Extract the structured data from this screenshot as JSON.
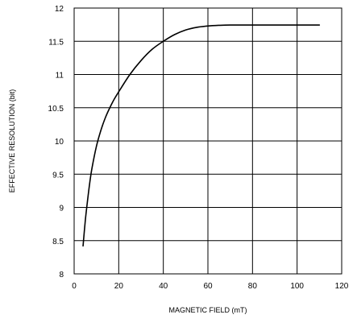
{
  "chart_data": {
    "type": "line",
    "title": "",
    "xlabel": "MAGNETIC FIELD (mT)",
    "ylabel": "EFFECTIVE RESOLUTION (bit)",
    "xlim": [
      0,
      120
    ],
    "ylim": [
      8,
      12
    ],
    "x_ticks": [
      "0",
      "20",
      "40",
      "60",
      "80",
      "100",
      "120"
    ],
    "y_ticks": [
      "8",
      "8.5",
      "9",
      "9.5",
      "10",
      "10.5",
      "11",
      "11.5",
      "12"
    ],
    "grid": true,
    "series": [
      {
        "x": [
          4,
          5,
          6,
          7,
          8,
          10,
          12,
          14,
          16,
          18,
          20,
          25,
          30,
          35,
          40,
          45,
          50,
          55,
          60,
          65,
          70,
          80,
          90,
          100,
          110
        ],
        "y": [
          8.42,
          8.8,
          9.1,
          9.37,
          9.59,
          9.92,
          10.16,
          10.35,
          10.5,
          10.63,
          10.74,
          11.0,
          11.21,
          11.38,
          11.5,
          11.6,
          11.67,
          11.71,
          11.73,
          11.74,
          11.745,
          11.745,
          11.745,
          11.745,
          11.745
        ]
      }
    ],
    "colors": {
      "line": "#000000",
      "grid": "#000000",
      "background": "#ffffff"
    }
  }
}
